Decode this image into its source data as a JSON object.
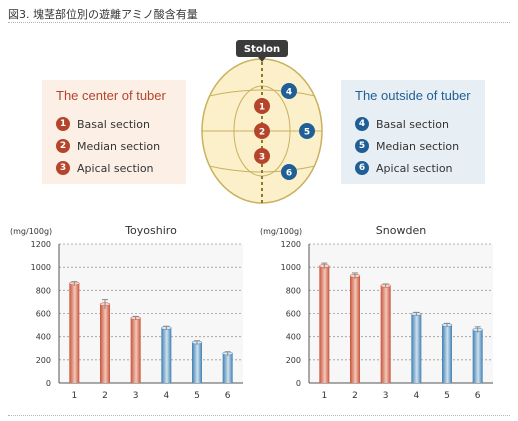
{
  "figure_title": "図3. 塊茎部位別の遊離アミノ酸含有量",
  "stolon_label": "Stolon",
  "center_panel": {
    "title": "The center of tuber",
    "items": [
      {
        "num": "1",
        "label": "Basal section"
      },
      {
        "num": "2",
        "label": "Median section"
      },
      {
        "num": "3",
        "label": "Apical section"
      }
    ]
  },
  "outside_panel": {
    "title": "The outside of tuber",
    "items": [
      {
        "num": "4",
        "label": "Basal section"
      },
      {
        "num": "5",
        "label": "Median section"
      },
      {
        "num": "6",
        "label": "Apical section"
      }
    ]
  },
  "colors": {
    "center": "#b5452a",
    "outside": "#1f5f96",
    "tuber_fill": "#fbf0c9",
    "tuber_stroke": "#c9b15e"
  },
  "chart_data": [
    {
      "type": "bar",
      "title": "Toyoshiro",
      "ylabel": "(mg/100g)",
      "categories": [
        "1",
        "2",
        "3",
        "4",
        "5",
        "6"
      ],
      "values": [
        860,
        680,
        560,
        475,
        350,
        255
      ],
      "errors": [
        15,
        40,
        15,
        15,
        15,
        15
      ],
      "ylim": [
        0,
        1200
      ],
      "yticks": [
        0,
        200,
        400,
        600,
        800,
        1000,
        1200
      ],
      "grid": true
    },
    {
      "type": "bar",
      "title": "Snowden",
      "ylabel": "(mg/100g)",
      "categories": [
        "1",
        "2",
        "3",
        "4",
        "5",
        "6"
      ],
      "values": [
        1010,
        925,
        840,
        595,
        500,
        460
      ],
      "errors": [
        25,
        25,
        15,
        15,
        15,
        25
      ],
      "ylim": [
        0,
        1200
      ],
      "yticks": [
        0,
        200,
        400,
        600,
        800,
        1000,
        1200
      ],
      "grid": true
    }
  ]
}
